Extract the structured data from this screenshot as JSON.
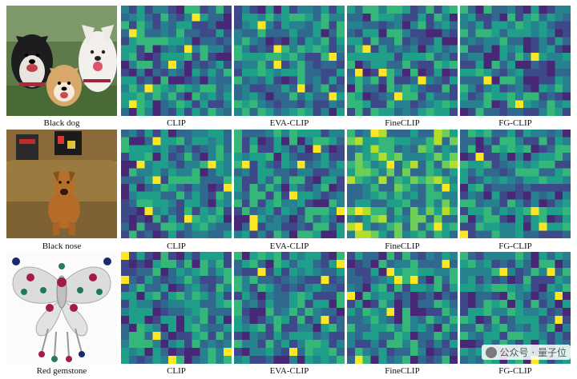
{
  "figure": {
    "method_labels": [
      "CLIP",
      "EVA-CLIP",
      "FineCLIP",
      "FG-CLIP"
    ],
    "rows": [
      {
        "query": "Black dog",
        "photo": "photo of three dogs (husky, shiba inu, white dog)",
        "heatmaps": [
          {
            "method": "CLIP"
          },
          {
            "method": "EVA-CLIP"
          },
          {
            "method": "FineCLIP"
          },
          {
            "method": "FG-CLIP"
          }
        ]
      },
      {
        "query": "Black nose",
        "photo": "photo of a brown dog sitting on a couch",
        "heatmaps": [
          {
            "method": "CLIP"
          },
          {
            "method": "EVA-CLIP"
          },
          {
            "method": "FineCLIP"
          },
          {
            "method": "FG-CLIP"
          }
        ]
      },
      {
        "query": "Red gemstone",
        "photo": "photo of a jeweled butterfly brooch",
        "heatmaps": [
          {
            "method": "CLIP"
          },
          {
            "method": "EVA-CLIP"
          },
          {
            "method": "FineCLIP"
          },
          {
            "method": "FG-CLIP"
          }
        ]
      }
    ],
    "colormap": {
      "name": "viridis",
      "stops": [
        "#440154",
        "#482777",
        "#3e4989",
        "#31688e",
        "#26828e",
        "#1f9e89",
        "#35b779",
        "#6ece58",
        "#b5de2b",
        "#fde725"
      ]
    }
  },
  "watermark": {
    "text": "公众号 · 量子位",
    "icon": "wechat-icon"
  }
}
